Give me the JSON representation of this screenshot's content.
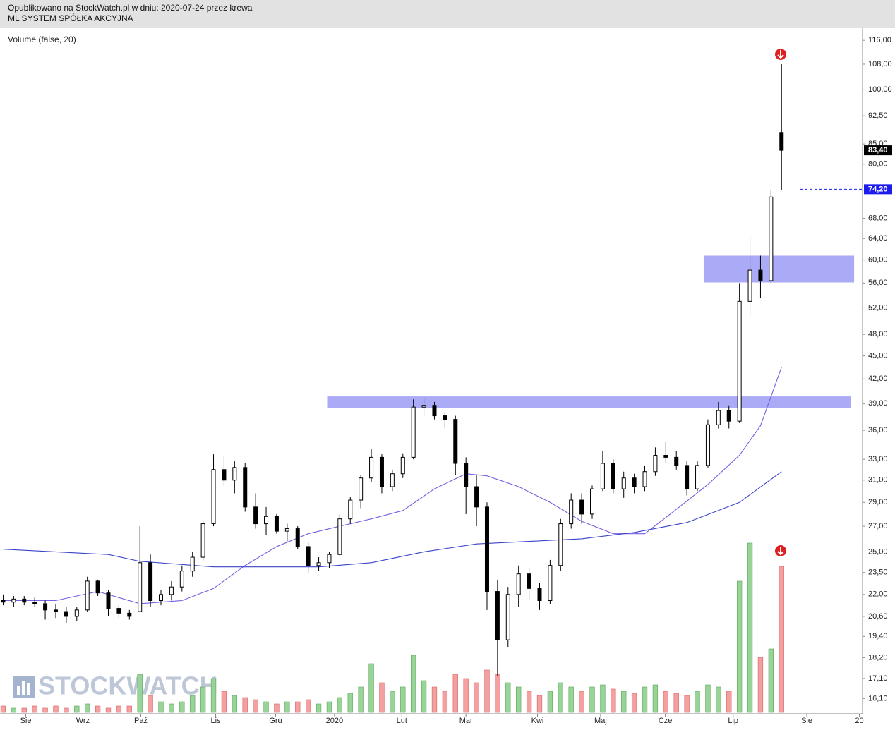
{
  "header": {
    "line1": "Opublikowano na StockWatch.pl w dniu: 2020-07-24 przez krewa",
    "line2": "ML SYSTEM SPÓŁKA AKCYJNA"
  },
  "chart_data": {
    "type": "candlestick",
    "indicator_label": "Volume (false, 20)",
    "watermark": "STOCKWATCH",
    "log_scale": true,
    "ylim": [
      15.38,
      120.3
    ],
    "xlim": [
      -0.3,
      81.7
    ],
    "vlim": [
      0,
      100
    ],
    "up_color": "#ffffff",
    "down_color": "#000000",
    "volume_up_color": "#98d498",
    "volume_down_color": "#f4a0a0",
    "x": [
      0,
      1,
      2,
      3,
      4,
      5,
      6,
      7,
      8,
      9,
      10,
      11,
      12,
      13,
      14,
      15,
      16,
      17,
      18,
      19,
      20,
      21,
      22,
      23,
      24,
      25,
      26,
      27,
      28,
      29,
      30,
      31,
      32,
      33,
      34,
      35,
      36,
      37,
      38,
      39,
      40,
      41,
      42,
      43,
      44,
      45,
      46,
      47,
      48,
      49,
      50,
      51,
      52,
      53,
      54,
      55,
      56,
      57,
      58,
      59,
      60,
      61,
      62,
      63,
      64,
      65,
      66,
      67,
      68,
      69,
      70,
      71,
      72,
      73,
      74
    ],
    "open": [
      21.6,
      21.5,
      21.7,
      21.5,
      21.4,
      21.0,
      20.9,
      20.6,
      21.0,
      22.9,
      22.1,
      21.1,
      20.8,
      20.9,
      24.2,
      21.6,
      22.0,
      22.5,
      23.6,
      24.6,
      27.2,
      32.0,
      31.0,
      32.2,
      28.6,
      27.2,
      27.8,
      26.6,
      26.8,
      25.4,
      24.0,
      24.2,
      24.8,
      27.6,
      29.2,
      31.2,
      33.2,
      30.4,
      31.6,
      33.2,
      38.6,
      38.8,
      37.6,
      37.2,
      32.6,
      30.4,
      28.6,
      22.2,
      19.2,
      22.0,
      23.4,
      22.4,
      21.6,
      24.0,
      27.2,
      29.2,
      28.0,
      30.2,
      32.6,
      30.2,
      31.2,
      30.4,
      31.8,
      33.4,
      33.2,
      32.4,
      30.2,
      32.4,
      36.6,
      38.2,
      37.0,
      53.0,
      58.2,
      56.4,
      88.0
    ],
    "high": [
      22.0,
      21.9,
      21.9,
      21.8,
      21.6,
      21.4,
      21.2,
      21.2,
      23.2,
      23.0,
      22.3,
      21.3,
      21.0,
      27.0,
      24.8,
      22.3,
      22.9,
      24.0,
      25.0,
      27.5,
      33.5,
      33.3,
      32.8,
      32.6,
      29.8,
      28.6,
      28.0,
      27.2,
      27.0,
      25.7,
      24.6,
      25.0,
      28.0,
      29.5,
      31.5,
      34.0,
      33.5,
      32.0,
      33.6,
      39.5,
      39.7,
      39.2,
      38.0,
      37.6,
      33.2,
      31.5,
      29.0,
      23.0,
      22.5,
      24.0,
      23.8,
      22.8,
      24.4,
      27.6,
      29.8,
      29.8,
      30.5,
      33.8,
      33.0,
      31.8,
      31.6,
      32.4,
      34.2,
      34.8,
      33.8,
      32.8,
      32.8,
      37.2,
      39.2,
      38.8,
      56.0,
      64.5,
      60.8,
      74.0,
      108.0
    ],
    "low": [
      21.3,
      21.2,
      21.3,
      21.2,
      20.4,
      20.5,
      20.2,
      20.3,
      20.9,
      21.9,
      20.6,
      20.5,
      20.4,
      20.9,
      21.2,
      21.3,
      21.6,
      22.2,
      23.2,
      24.3,
      27.0,
      30.5,
      29.8,
      28.2,
      26.8,
      26.3,
      26.4,
      25.8,
      25.2,
      23.5,
      23.6,
      23.8,
      24.7,
      27.2,
      28.5,
      30.8,
      29.8,
      30.0,
      31.2,
      33.0,
      37.6,
      37.2,
      36.2,
      31.5,
      28.0,
      27.0,
      21.0,
      17.2,
      18.8,
      21.2,
      21.6,
      21.0,
      21.4,
      23.6,
      26.8,
      27.2,
      27.6,
      30.0,
      29.8,
      29.4,
      29.8,
      30.0,
      31.4,
      32.6,
      32.0,
      29.6,
      30.0,
      32.2,
      36.2,
      36.2,
      36.8,
      50.5,
      53.5,
      56.0,
      74.0
    ],
    "close": [
      21.5,
      21.7,
      21.5,
      21.4,
      21.0,
      20.9,
      20.6,
      21.0,
      22.9,
      22.1,
      21.1,
      20.8,
      20.6,
      24.2,
      21.6,
      22.0,
      22.5,
      23.6,
      24.6,
      27.2,
      32.0,
      31.0,
      32.2,
      28.6,
      27.2,
      27.8,
      26.6,
      26.8,
      25.4,
      24.0,
      24.2,
      24.8,
      27.6,
      29.2,
      31.2,
      33.2,
      30.4,
      31.6,
      33.2,
      38.6,
      38.8,
      37.6,
      37.2,
      32.6,
      30.4,
      28.6,
      22.2,
      19.2,
      22.0,
      23.4,
      22.4,
      21.6,
      24.0,
      27.2,
      29.2,
      28.0,
      30.2,
      32.6,
      30.2,
      31.2,
      30.4,
      31.8,
      33.4,
      33.2,
      32.4,
      30.2,
      32.4,
      36.6,
      38.2,
      37.0,
      53.0,
      58.2,
      56.4,
      72.5,
      83.4
    ],
    "volume": [
      3,
      2,
      2,
      3,
      2,
      3,
      2,
      3,
      4,
      3,
      2,
      3,
      3,
      18,
      8,
      5,
      4,
      5,
      8,
      12,
      16,
      10,
      8,
      7,
      6,
      5,
      4,
      5,
      5,
      6,
      4,
      5,
      7,
      9,
      12,
      23,
      14,
      10,
      12,
      27,
      15,
      12,
      10,
      18,
      16,
      14,
      20,
      18,
      14,
      12,
      10,
      8,
      10,
      14,
      12,
      10,
      12,
      13,
      11,
      10,
      9,
      12,
      13,
      10,
      9,
      8,
      10,
      13,
      12,
      10,
      62,
      80,
      26,
      30,
      69
    ],
    "moving_averages": [
      {
        "color": "#7a5fe0",
        "x": [
          0,
          5,
          9,
          13,
          17,
          20,
          23,
          26,
          29,
          32,
          35,
          38,
          41,
          44,
          46,
          49,
          52,
          55,
          58,
          61,
          64,
          67,
          70,
          72,
          74
        ],
        "values": [
          21.6,
          21.6,
          22.2,
          21.4,
          21.6,
          22.4,
          24.0,
          25.4,
          26.4,
          27.0,
          27.6,
          28.3,
          30.2,
          31.6,
          31.4,
          30.4,
          29.0,
          27.4,
          26.4,
          26.4,
          28.4,
          30.6,
          33.4,
          36.5,
          43.5
        ]
      },
      {
        "color": "#3a44c8",
        "x": [
          0,
          10,
          13,
          20,
          30,
          35,
          40,
          45,
          50,
          55,
          60,
          65,
          70,
          74
        ],
        "values": [
          25.2,
          24.8,
          24.3,
          23.9,
          23.9,
          24.2,
          25.0,
          25.6,
          25.8,
          26.0,
          26.5,
          27.3,
          29.0,
          31.8
        ]
      }
    ],
    "zones": [
      {
        "color": "#aaaaf6",
        "x": [
          30.8,
          80.6
        ],
        "y": [
          38.5,
          39.85
        ]
      },
      {
        "color": "#aaaaf6",
        "x": [
          66.6,
          80.9
        ],
        "y": [
          56.1,
          60.8
        ]
      }
    ],
    "price_markers": [
      {
        "value": 83.4,
        "label": "83,40",
        "color": "#000000"
      },
      {
        "value": 74.2,
        "label": "74,20",
        "color": "#1c1cf0"
      }
    ],
    "yticks": [
      {
        "value": 116,
        "label": "116,00"
      },
      {
        "value": 108,
        "label": "108,00"
      },
      {
        "value": 100,
        "label": "100,00"
      },
      {
        "value": 92.5,
        "label": "92,50"
      },
      {
        "value": 85,
        "label": "85,00"
      },
      {
        "value": 80,
        "label": "80,00"
      },
      {
        "value": 74,
        "label": "74,00"
      },
      {
        "value": 68,
        "label": "68,00"
      },
      {
        "value": 64,
        "label": "64,00"
      },
      {
        "value": 60,
        "label": "60,00"
      },
      {
        "value": 56,
        "label": "56,00"
      },
      {
        "value": 52,
        "label": "52,00"
      },
      {
        "value": 48,
        "label": "48,00"
      },
      {
        "value": 45,
        "label": "45,00"
      },
      {
        "value": 42,
        "label": "42,00"
      },
      {
        "value": 39,
        "label": "39,00"
      },
      {
        "value": 36,
        "label": "36,00"
      },
      {
        "value": 33,
        "label": "33,00"
      },
      {
        "value": 31,
        "label": "31,00"
      },
      {
        "value": 29,
        "label": "29,00"
      },
      {
        "value": 27,
        "label": "27,00"
      },
      {
        "value": 25,
        "label": "25,00"
      },
      {
        "value": 23.5,
        "label": "23,50"
      },
      {
        "value": 22,
        "label": "22,00"
      },
      {
        "value": 20.6,
        "label": "20,60"
      },
      {
        "value": 19.4,
        "label": "19,40"
      },
      {
        "value": 18.2,
        "label": "18,20"
      },
      {
        "value": 17.1,
        "label": "17,10"
      },
      {
        "value": 16.1,
        "label": "16,10"
      }
    ],
    "xticks": [
      {
        "value": 2.15,
        "label": "Sie"
      },
      {
        "value": 7.58,
        "label": "Wrz"
      },
      {
        "value": 13.09,
        "label": "Paź"
      },
      {
        "value": 20.2,
        "label": "Lis"
      },
      {
        "value": 25.9,
        "label": "Gru"
      },
      {
        "value": 31.5,
        "label": "2020"
      },
      {
        "value": 37.9,
        "label": "Lut"
      },
      {
        "value": 44.0,
        "label": "Mar"
      },
      {
        "value": 50.8,
        "label": "Kwi"
      },
      {
        "value": 56.8,
        "label": "Maj"
      },
      {
        "value": 62.95,
        "label": "Cze"
      },
      {
        "value": 69.4,
        "label": "Lip"
      },
      {
        "value": 76.4,
        "label": "Sie"
      },
      {
        "value": 81.4,
        "label": "20"
      }
    ]
  }
}
